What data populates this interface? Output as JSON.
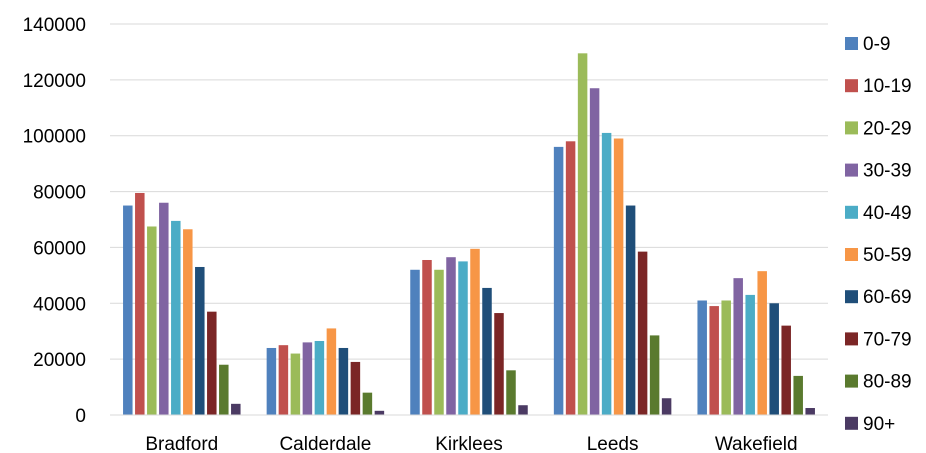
{
  "chart_data": {
    "type": "bar",
    "title": "",
    "xlabel": "",
    "ylabel": "",
    "ylim": [
      0,
      140000
    ],
    "yticks": [
      0,
      20000,
      40000,
      60000,
      80000,
      100000,
      120000,
      140000
    ],
    "grid": true,
    "legend_position": "right",
    "categories": [
      "Bradford",
      "Calderdale",
      "Kirklees",
      "Leeds",
      "Wakefield"
    ],
    "series": [
      {
        "name": "0-9",
        "color": "#4F81BD",
        "values": [
          75000,
          24000,
          52000,
          96000,
          41000
        ]
      },
      {
        "name": "10-19",
        "color": "#C0504D",
        "values": [
          79500,
          25000,
          55500,
          98000,
          39000
        ]
      },
      {
        "name": "20-29",
        "color": "#9BBB59",
        "values": [
          67500,
          22000,
          52000,
          129500,
          41000
        ]
      },
      {
        "name": "30-39",
        "color": "#8064A2",
        "values": [
          76000,
          26000,
          56500,
          117000,
          49000
        ]
      },
      {
        "name": "40-49",
        "color": "#4BACC6",
        "values": [
          69500,
          26500,
          55000,
          101000,
          43000
        ]
      },
      {
        "name": "50-59",
        "color": "#F79646",
        "values": [
          66500,
          31000,
          59500,
          99000,
          51500
        ]
      },
      {
        "name": "60-69",
        "color": "#1F4E79",
        "values": [
          53000,
          24000,
          45500,
          75000,
          40000
        ]
      },
      {
        "name": "70-79",
        "color": "#7B2626",
        "values": [
          37000,
          19000,
          36500,
          58500,
          32000
        ]
      },
      {
        "name": "80-89",
        "color": "#5A7A2E",
        "values": [
          18000,
          8000,
          16000,
          28500,
          14000
        ]
      },
      {
        "name": "90+",
        "color": "#4B3A63",
        "values": [
          4000,
          1500,
          3500,
          6000,
          2500
        ]
      }
    ]
  }
}
